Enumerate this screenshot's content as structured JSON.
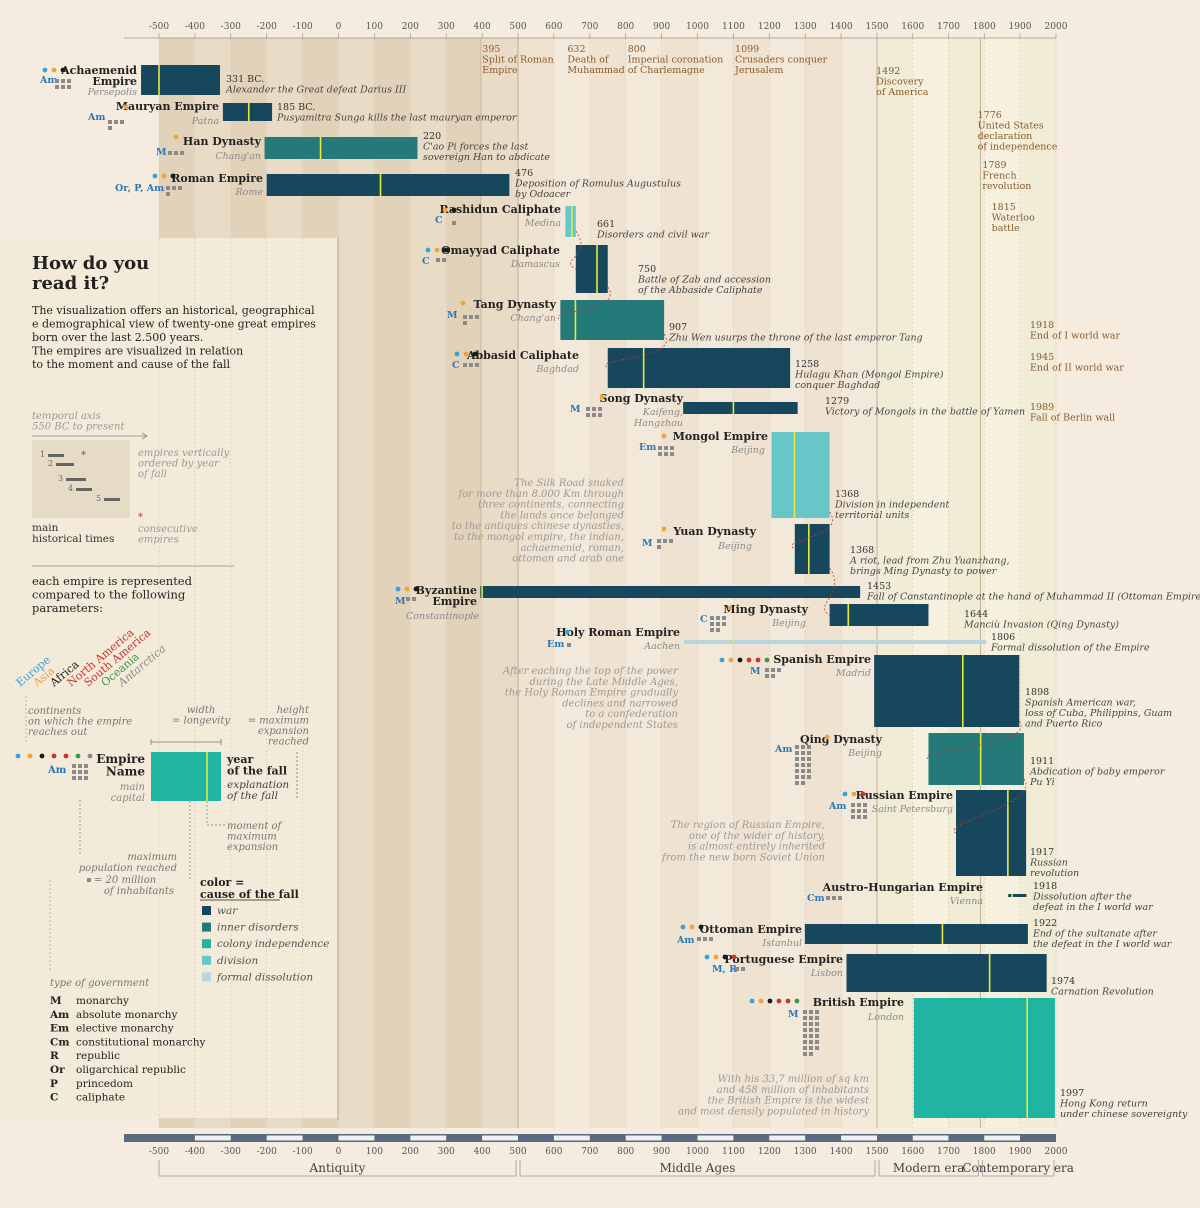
{
  "axis": {
    "tick_labels": [
      "-500",
      "-400",
      "-300",
      "-200",
      "-100",
      "0",
      "100",
      "200",
      "300",
      "400",
      "500",
      "600",
      "700",
      "800",
      "900",
      "1000",
      "1100",
      "1200",
      "1300",
      "1400",
      "1500",
      "1600",
      "1700",
      "1800",
      "1900",
      "2000"
    ],
    "eras": [
      {
        "name": "Antiquity",
        "from": -550,
        "to": 500
      },
      {
        "name": "Middle Ages",
        "from": 500,
        "to": 1500
      },
      {
        "name": "Modern era",
        "from": 1500,
        "to": 1789
      },
      {
        "name": "Contemporary era",
        "from": 1789,
        "to": 2000
      }
    ]
  },
  "events": [
    {
      "year": "395",
      "text": "Split of Roman Empire",
      "lines": [
        "395",
        "Split of Roman",
        "Empire"
      ],
      "x": 395,
      "row": 0,
      "color": "#b5461f"
    },
    {
      "year": "632",
      "text": "Death of Muhammad",
      "lines": [
        "632",
        "Death of",
        "Muhammad"
      ],
      "x": 632,
      "row": 0,
      "color": "#8a5a2c"
    },
    {
      "year": "800",
      "text": "Imperial coronation of Charlemagne",
      "lines": [
        "800",
        "Imperial coronation",
        "of Charlemagne"
      ],
      "x": 800,
      "row": 0,
      "color": "#8a5a2c"
    },
    {
      "year": "1099",
      "text": "Crusaders conquer Jerusalem",
      "lines": [
        "1099",
        "Crusaders conquer",
        "Jerusalem"
      ],
      "x": 1099,
      "row": 0,
      "color": "#8a5a2c"
    },
    {
      "year": "1492",
      "text": "Discovery of America",
      "lines": [
        "1492",
        "Discovery",
        "of America"
      ],
      "x": 1492,
      "row": 1,
      "color": "#8a5a2c"
    },
    {
      "year": "1776",
      "text": "United States declaration of independence",
      "lines": [
        "1776",
        "United States",
        "declaration",
        "of independence"
      ],
      "x": 1776,
      "row": 2,
      "color": "#8a5a2c"
    },
    {
      "year": "1789",
      "text": "French revolution",
      "lines": [
        "1789",
        "French",
        "revolution"
      ],
      "x": 1789,
      "row": 3,
      "color": "#8a5a2c"
    },
    {
      "year": "1815",
      "text": "Waterloo battle",
      "lines": [
        "1815",
        "Waterloo",
        "battle"
      ],
      "x": 1815,
      "row": 4,
      "color": "#8a5a2c"
    },
    {
      "year": "1918",
      "text": "End of I world war",
      "lines": [
        "1918",
        "End of I world war"
      ],
      "x": 1918,
      "row": 5,
      "color": "#8a5a2c"
    },
    {
      "year": "1945",
      "text": "End of II world war",
      "lines": [
        "1945",
        "End of II world war"
      ],
      "x": 1945,
      "row": 6,
      "color": "#8a5a2c"
    },
    {
      "year": "1989",
      "text": "Fall of Berlin wall",
      "lines": [
        "1989",
        "Fall of Berlin wall"
      ],
      "x": 1989,
      "row": 7,
      "color": "#8a5a2c"
    }
  ],
  "chart_data": {
    "type": "bar",
    "xlim": [
      -550,
      2000
    ],
    "empires": [
      {
        "name": "Achaemenid Empire",
        "capital": "Persepolis",
        "start": -550,
        "end": -330,
        "peak": -500,
        "fall_year": "331 BC.",
        "fall": "Alexander the Great defeat Darius III",
        "cause": "war",
        "gov": "Am",
        "population_units": 6,
        "continents": [
          "europe",
          "asia",
          "africa"
        ]
      },
      {
        "name": "Mauryan Empire",
        "capital": "Patna",
        "start": -322,
        "end": -185,
        "peak": -250,
        "fall_year": "185 BC.",
        "fall": "Pusyamitra Sunga kills the last mauryan emperor",
        "cause": "war",
        "gov": "Am",
        "population_units": 4,
        "continents": [
          "asia"
        ]
      },
      {
        "name": "Han Dynasty",
        "capital": "Chang'an",
        "start": -206,
        "end": 220,
        "peak": -50,
        "fall_year": "220",
        "fall": "C'ao Pi forces the last sovereign Han to abdicate",
        "cause": "inner disorders",
        "gov": "M",
        "population_units": 3,
        "continents": [
          "asia"
        ]
      },
      {
        "name": "Roman Empire",
        "capital": "Rome",
        "start": -200,
        "end": 476,
        "peak": 117,
        "fall_year": "476",
        "fall": "Deposition of Romulus Augustulus by Odoacer",
        "cause": "war",
        "gov": "Or, P, Am",
        "population_units": 4,
        "continents": [
          "europe",
          "asia",
          "africa"
        ]
      },
      {
        "name": "Rashidun Caliphate",
        "capital": "Medina",
        "start": 632,
        "end": 661,
        "peak": 650,
        "fall_year": "661",
        "fall": "Disorders and civil war",
        "cause": "division",
        "gov": "C",
        "population_units": 1,
        "continents": [
          "asia",
          "africa"
        ]
      },
      {
        "name": "Omayyad Caliphate",
        "capital": "Damascus",
        "start": 661,
        "end": 750,
        "peak": 720,
        "fall_year": "750",
        "fall": "Battle of Zab and accession of the Abbaside Caliphate",
        "cause": "war",
        "gov": "C",
        "population_units": 2,
        "continents": [
          "europe",
          "asia",
          "africa"
        ]
      },
      {
        "name": "Tang Dynasty",
        "capital": "Chang'an",
        "start": 618,
        "end": 907,
        "peak": 660,
        "fall_year": "907",
        "fall": "Zhu Wen usurps the throne of the last emperor Tang",
        "cause": "inner disorders",
        "gov": "M",
        "population_units": 4,
        "continents": [
          "asia"
        ]
      },
      {
        "name": "Abbasid Caliphate",
        "capital": "Baghdad",
        "start": 750,
        "end": 1258,
        "peak": 850,
        "fall_year": "1258",
        "fall": "Hulagu Khan (Mongol Empire) conquer Baghdad",
        "cause": "war",
        "gov": "C",
        "population_units": 3,
        "continents": [
          "europe",
          "asia",
          "africa"
        ]
      },
      {
        "name": "Song Dynasty",
        "capital": "Kaifeng, Hangzhou",
        "start": 960,
        "end": 1279,
        "peak": 1100,
        "fall_year": "1279",
        "fall": "Victory of Mongols in the battle of Yamen",
        "cause": "war",
        "gov": "M",
        "population_units": 6,
        "continents": [
          "asia"
        ]
      },
      {
        "name": "Mongol Empire",
        "capital": "Beijing",
        "start": 1206,
        "end": 1368,
        "peak": 1270,
        "fall_year": "1368",
        "fall": "Division in independent territorial units",
        "cause": "division",
        "gov": "Em",
        "population_units": 6,
        "continents": [
          "asia"
        ]
      },
      {
        "name": "Yuan Dynasty",
        "capital": "Beijing",
        "start": 1271,
        "end": 1368,
        "peak": 1310,
        "fall_year": "1368",
        "fall": "A riot, lead from Zhu Yuanzhang, brings Ming Dynasty to power",
        "cause": "war",
        "gov": "M",
        "population_units": 4,
        "continents": [
          "asia"
        ]
      },
      {
        "name": "Byzantine Empire",
        "capital": "Constantinople",
        "start": 395,
        "end": 1453,
        "peak": 400,
        "fall_year": "1453",
        "fall": "Fall of Constantinople at the hand of Muhammad II (Ottoman Empire)",
        "cause": "war",
        "gov": "M",
        "population_units": 2,
        "continents": [
          "europe",
          "asia",
          "africa"
        ]
      },
      {
        "name": "Ming Dynasty",
        "capital": "Beijing",
        "start": 1368,
        "end": 1644,
        "peak": 1420,
        "fall_year": "1644",
        "fall": "Manciù Invasion (Qing Dynasty)",
        "cause": "war",
        "gov": "C",
        "population_units": 8,
        "continents": [
          "asia"
        ]
      },
      {
        "name": "Holy Roman Empire",
        "capital": "Aachen",
        "start": 962,
        "end": 1806,
        "peak": 1100,
        "fall_year": "1806",
        "fall": "Formal dissolution of the Empire",
        "cause": "formal dissolution",
        "gov": "Em",
        "population_units": 1,
        "continents": [
          "europe"
        ]
      },
      {
        "name": "Spanish Empire",
        "capital": "Madrid",
        "start": 1492,
        "end": 1898,
        "peak": 1740,
        "fall_year": "1898",
        "fall": "Spanish American war, loss of Cuba, Philippins, Guam and Puerto Rico",
        "cause": "war",
        "gov": "M",
        "population_units": 5,
        "continents": [
          "europe",
          "asia",
          "africa",
          "north america",
          "south america",
          "oceania"
        ]
      },
      {
        "name": "Qing Dynasty",
        "capital": "Beijing",
        "start": 1644,
        "end": 1911,
        "peak": 1790,
        "fall_year": "1911",
        "fall": "Abdication of baby emperor Pu Yi",
        "cause": "inner disorders",
        "gov": "Am",
        "population_units": 20,
        "continents": [
          "asia"
        ]
      },
      {
        "name": "Russian Empire",
        "capital": "Saint Petersburg",
        "start": 1721,
        "end": 1917,
        "peak": 1866,
        "fall_year": "1917",
        "fall": "Russian revolution",
        "cause": "war",
        "gov": "Am",
        "population_units": 9,
        "continents": [
          "europe",
          "asia",
          "north america"
        ]
      },
      {
        "name": "Austro-Hungarian Empire",
        "capital": "Vienna",
        "start": 1867,
        "end": 1918,
        "peak": 1878,
        "fall_year": "1918",
        "fall": "Dissolution after the defeat in the I world war",
        "cause": "war",
        "gov": "Cm",
        "population_units": 3,
        "continents": [
          "europe"
        ]
      },
      {
        "name": "Ottoman Empire",
        "capital": "Istanbul",
        "start": 1299,
        "end": 1922,
        "peak": 1683,
        "fall_year": "1922",
        "fall": "End of the sultanate after the defeat in the I world war",
        "cause": "war",
        "gov": "Am",
        "population_units": 3,
        "continents": [
          "europe",
          "asia",
          "africa"
        ]
      },
      {
        "name": "Portuguese Empire",
        "capital": "Lisbon",
        "start": 1415,
        "end": 1974,
        "peak": 1815,
        "fall_year": "1974",
        "fall": "Carnation Revolution",
        "cause": "war",
        "gov": "M, R",
        "population_units": 2,
        "continents": [
          "europe",
          "asia",
          "africa",
          "south america"
        ]
      },
      {
        "name": "British Empire",
        "capital": "London",
        "start": 1603,
        "end": 1997,
        "peak": 1920,
        "fall_year": "1997",
        "fall": "Hong Kong return under chinese sovereignty",
        "cause": "colony independence",
        "gov": "M",
        "population_units": 23,
        "continents": [
          "europe",
          "asia",
          "africa",
          "north america",
          "south america",
          "oceania"
        ]
      }
    ]
  },
  "notes": [
    {
      "lines": [
        "The Silk Road snaked",
        "for more than 8.000 Km through",
        "three continents, connecting",
        "the lands once belonged",
        "to the antiques chinese dynasties,",
        "to the mongol empire, the indian,",
        "achaemenid, roman,",
        "ottoman and arab one"
      ]
    },
    {
      "lines": [
        "After eaching the top of the power",
        "during the Late Middle Ages,",
        "the Holy Roman Empire gradually",
        "declines and narrowed",
        "to a confederation",
        "of independent States"
      ]
    },
    {
      "lines": [
        "The region of Russian Empire,",
        "one of the wider of history,",
        "is almost entirely inherited",
        "from the new born Soviet Union"
      ]
    },
    {
      "lines": [
        "With his 33,7 million of sq km",
        "and 458 million of inhabitants",
        "the British Empire is the widest",
        "and most densily populated in history"
      ]
    }
  ],
  "legend": {
    "title_lines": [
      "How do you",
      "read it?"
    ],
    "intro_lines": [
      "The visualization offers an historical, geographical",
      "e demographical view of twenty-one great empires",
      "born over the last 2.500 years.",
      "The empires are visualized in relation",
      "to the moment and cause of the fall"
    ],
    "temporal_axis": [
      "temporal axis",
      "550 BC to present"
    ],
    "ordered": [
      "empires vertically",
      "ordered by year",
      "of fall"
    ],
    "main_times": [
      "main",
      "historical times"
    ],
    "consecutive": [
      "consecutive",
      "empires"
    ],
    "params_lines": [
      "each empire is represented",
      "compared to the following",
      "parameters:"
    ],
    "continents": [
      {
        "name": "Europe",
        "color": "#3aa3d6"
      },
      {
        "name": "Asia",
        "color": "#f0a23b"
      },
      {
        "name": "Africa",
        "color": "#1a1a1a"
      },
      {
        "name": "North America",
        "color": "#c8362c"
      },
      {
        "name": "South America",
        "color": "#c8362c"
      },
      {
        "name": "Oceania",
        "color": "#3a9a4a"
      },
      {
        "name": "Antarctica",
        "color": "#8a8a8a"
      }
    ],
    "continents_caption": [
      "continents",
      "on which the empire",
      "reaches out"
    ],
    "width_caption": [
      "width",
      "= longevity"
    ],
    "height_caption": [
      "height",
      "= maximum",
      "expansion",
      "reached"
    ],
    "sample_name": [
      "Empire",
      "Name"
    ],
    "sample_capital": [
      "main",
      "capital"
    ],
    "sample_gov": "Am",
    "fall_caption": [
      "year",
      "of the fall",
      "explanation",
      "of the fall"
    ],
    "moment_caption": [
      "moment of",
      "maximum",
      "expansion"
    ],
    "population_caption": [
      "maximum",
      "population reached",
      "= 20 million",
      "of inhabitants"
    ],
    "color_title": [
      "color =",
      "cause of the fall"
    ],
    "causes": [
      {
        "name": "war",
        "color": "#16475d"
      },
      {
        "name": "inner disorders",
        "color": "#247a79"
      },
      {
        "name": "colony independence",
        "color": "#20b4a2"
      },
      {
        "name": "division",
        "color": "#67c7c8"
      },
      {
        "name": "formal dissolution",
        "color": "#b9d5e0"
      }
    ],
    "gov_title": "type of government",
    "govs": [
      {
        "code": "M",
        "name": "monarchy"
      },
      {
        "code": "Am",
        "name": "absolute monarchy"
      },
      {
        "code": "Em",
        "name": "elective monarchy"
      },
      {
        "code": "Cm",
        "name": "constitutional monarchy"
      },
      {
        "code": "R",
        "name": "republic"
      },
      {
        "code": "Or",
        "name": "oligarchical republic"
      },
      {
        "code": "P",
        "name": "princedom"
      },
      {
        "code": "C",
        "name": "caliphate"
      }
    ]
  },
  "colors": {
    "war": "#16475d",
    "inner disorders": "#247a79",
    "colony independence": "#20b4a2",
    "division": "#67c7c8",
    "formal dissolution": "#b9d5e0",
    "peak_line": "#e6ea3c",
    "gov_text": "#2a78b5",
    "event_text": "#8a5a2c",
    "muted": "#8a8a8a"
  }
}
